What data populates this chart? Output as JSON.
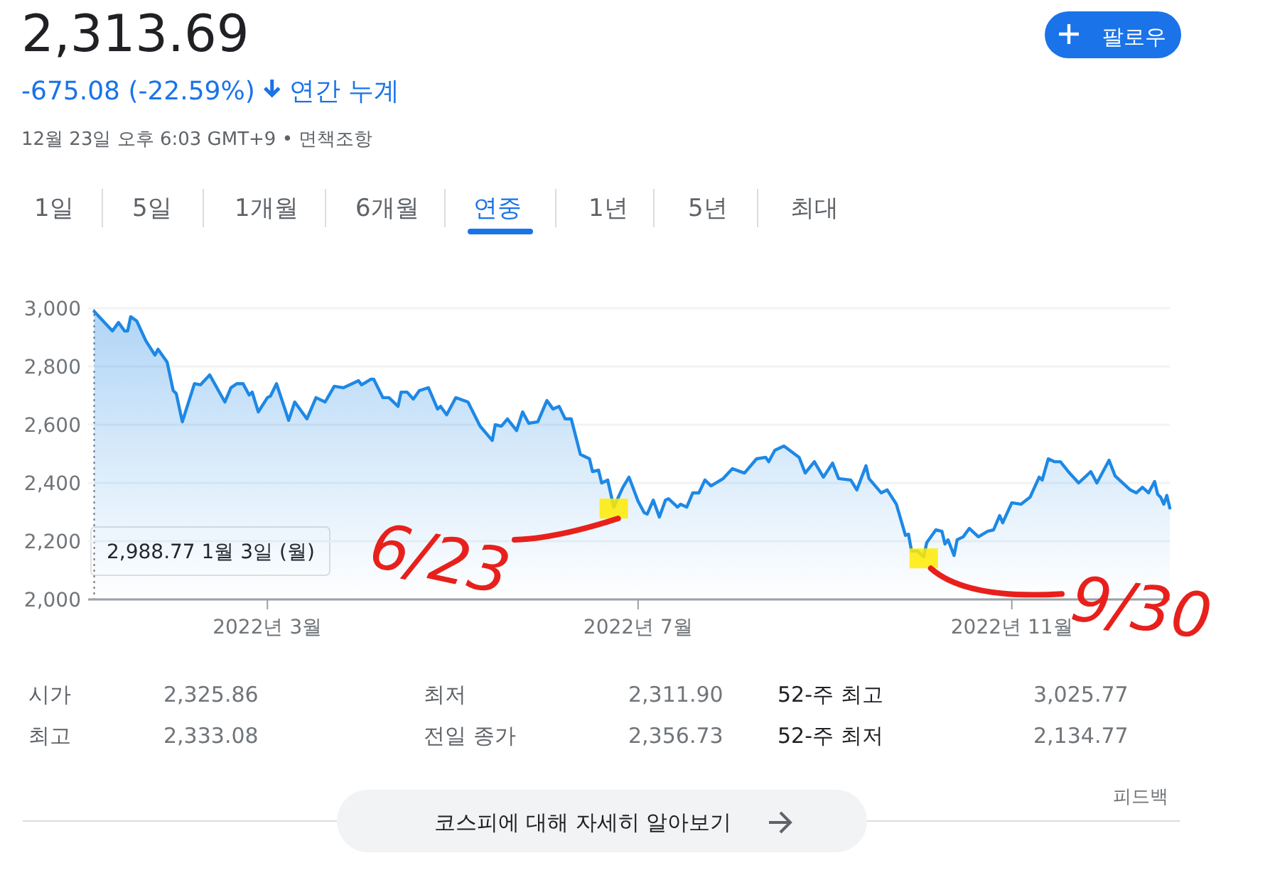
{
  "chart_data": {
    "type": "area",
    "title": "2,313.69",
    "subtitle": "-675.08 (-22.59%)",
    "x": [
      "2022-01-03",
      "2022-01-09",
      "2022-01-11",
      "2022-01-13",
      "2022-01-14",
      "2022-01-15",
      "2022-01-17",
      "2022-01-20",
      "2022-01-23",
      "2022-01-24",
      "2022-01-27",
      "2022-01-29",
      "2022-01-30",
      "2022-02-01",
      "2022-02-05",
      "2022-02-07",
      "2022-02-10",
      "2022-02-15",
      "2022-02-17",
      "2022-02-19",
      "2022-02-21",
      "2022-02-23",
      "2022-02-24",
      "2022-02-26",
      "2022-03-01",
      "2022-03-02",
      "2022-03-04",
      "2022-03-08",
      "2022-03-10",
      "2022-03-14",
      "2022-03-17",
      "2022-03-20",
      "2022-03-23",
      "2022-03-26",
      "2022-03-31",
      "2022-04-01",
      "2022-04-04",
      "2022-04-05",
      "2022-04-08",
      "2022-04-10",
      "2022-04-13",
      "2022-04-14",
      "2022-04-16",
      "2022-04-18",
      "2022-04-20",
      "2022-04-23",
      "2022-04-26",
      "2022-04-27",
      "2022-04-29",
      "2022-05-02",
      "2022-05-06",
      "2022-05-10",
      "2022-05-14",
      "2022-05-15",
      "2022-05-17",
      "2022-05-19",
      "2022-05-22",
      "2022-05-24",
      "2022-05-26",
      "2022-05-29",
      "2022-06-01",
      "2022-06-03",
      "2022-06-05",
      "2022-06-07",
      "2022-06-09",
      "2022-06-12",
      "2022-06-15",
      "2022-06-16",
      "2022-06-18",
      "2022-06-19",
      "2022-06-21",
      "2022-06-23",
      "2022-06-26",
      "2022-06-28",
      "2022-07-01",
      "2022-07-03",
      "2022-07-04",
      "2022-07-06",
      "2022-07-08",
      "2022-07-10",
      "2022-07-11",
      "2022-07-14",
      "2022-07-15",
      "2022-07-17",
      "2022-07-19",
      "2022-07-21",
      "2022-07-23",
      "2022-07-25",
      "2022-07-29",
      "2022-08-01",
      "2022-08-05",
      "2022-08-09",
      "2022-08-12",
      "2022-08-13",
      "2022-08-15",
      "2022-08-18",
      "2022-08-23",
      "2022-08-25",
      "2022-08-28",
      "2022-08-31",
      "2022-09-03",
      "2022-09-05",
      "2022-09-09",
      "2022-09-11",
      "2022-09-14",
      "2022-09-15",
      "2022-09-19",
      "2022-09-21",
      "2022-09-24",
      "2022-09-27",
      "2022-09-28",
      "2022-09-29",
      "2022-10-01",
      "2022-10-03",
      "2022-10-04",
      "2022-10-07",
      "2022-10-09",
      "2022-10-10",
      "2022-10-11",
      "2022-10-13",
      "2022-10-14",
      "2022-10-16",
      "2022-10-18",
      "2022-10-21",
      "2022-10-24",
      "2022-10-26",
      "2022-10-28",
      "2022-10-29",
      "2022-11-01",
      "2022-11-04",
      "2022-11-07",
      "2022-11-10",
      "2022-11-11",
      "2022-11-13",
      "2022-11-15",
      "2022-11-17",
      "2022-11-20",
      "2022-11-23",
      "2022-11-27",
      "2022-11-29",
      "2022-12-03",
      "2022-12-05",
      "2022-12-10",
      "2022-12-12",
      "2022-12-14",
      "2022-12-16",
      "2022-12-18",
      "2022-12-19",
      "2022-12-20",
      "2022-12-21",
      "2022-12-22",
      "2022-12-23"
    ],
    "series": [
      {
        "color": "#1e88e5",
        "values": [
          2988.77,
          2922,
          2951,
          2922,
          2922,
          2971,
          2956,
          2888,
          2839,
          2859,
          2815,
          2717,
          2707,
          2610,
          2741,
          2737,
          2771,
          2678,
          2727,
          2741,
          2741,
          2702,
          2712,
          2644,
          2693,
          2698,
          2741,
          2615,
          2678,
          2620,
          2693,
          2678,
          2732,
          2727,
          2751,
          2737,
          2756,
          2756,
          2693,
          2693,
          2663,
          2712,
          2712,
          2688,
          2717,
          2727,
          2654,
          2663,
          2634,
          2693,
          2678,
          2595,
          2546,
          2600,
          2595,
          2620,
          2580,
          2644,
          2605,
          2610,
          2683,
          2654,
          2663,
          2620,
          2620,
          2498,
          2483,
          2439,
          2444,
          2400,
          2410,
          2317,
          2385,
          2420,
          2337,
          2298,
          2293,
          2341,
          2283,
          2341,
          2346,
          2317,
          2327,
          2317,
          2366,
          2366,
          2410,
          2390,
          2415,
          2449,
          2434,
          2483,
          2488,
          2473,
          2512,
          2527,
          2488,
          2434,
          2473,
          2420,
          2468,
          2415,
          2410,
          2376,
          2459,
          2415,
          2366,
          2376,
          2327,
          2220,
          2224,
          2166,
          2166,
          2146,
          2195,
          2239,
          2234,
          2190,
          2205,
          2151,
          2205,
          2215,
          2244,
          2215,
          2234,
          2239,
          2288,
          2263,
          2332,
          2327,
          2351,
          2420,
          2410,
          2483,
          2473,
          2473,
          2434,
          2400,
          2439,
          2400,
          2478,
          2424,
          2376,
          2366,
          2385,
          2366,
          2405,
          2361,
          2351,
          2327,
          2357,
          2314
        ]
      }
    ],
    "xlim": [
      "2022-01-01",
      "2022-12-23"
    ],
    "xticks": [
      {
        "value": "2022-03-01",
        "label": "2022년 3월"
      },
      {
        "value": "2022-07-01",
        "label": "2022년 7월"
      },
      {
        "value": "2022-11-01",
        "label": "2022년 11월"
      }
    ],
    "ylim": [
      2000,
      3000
    ],
    "yticks": [
      {
        "value": 2000,
        "label": "2,000"
      },
      {
        "value": 2200,
        "label": "2,200"
      },
      {
        "value": 2400,
        "label": "2,400"
      },
      {
        "value": 2600,
        "label": "2,600"
      },
      {
        "value": 2800,
        "label": "2,800"
      },
      {
        "value": 3000,
        "label": "3,000"
      }
    ],
    "grid": "y",
    "ref_lines": [
      {
        "axis": "x",
        "value": "2022-01-03",
        "color": "#70757a",
        "line_style": "dotted"
      }
    ],
    "annotations": [
      "2,988.77  1월 3일 (월)",
      {
        "text": "6/23",
        "x": "2022-06-23",
        "y": 2317
      },
      {
        "text": "9/30",
        "x": "2022-10-03",
        "y": 2146
      },
      "연간 누계",
      "12월 23일 오후 6:03 GMT+9 • 면책조항",
      "1일",
      "5일",
      "1개월",
      "6개월",
      "연중",
      "1년",
      "5년",
      "최대",
      "팔로우",
      "시가",
      "2,325.86",
      "최저",
      "2,311.90",
      "52-주 최고",
      "3,025.77",
      "최고",
      "2,333.08",
      "전일 종가",
      "2,356.73",
      "52-주 최저",
      "2,134.77",
      "피드백",
      "코스피에 대해 자세히 알아보기"
    ]
  }
}
